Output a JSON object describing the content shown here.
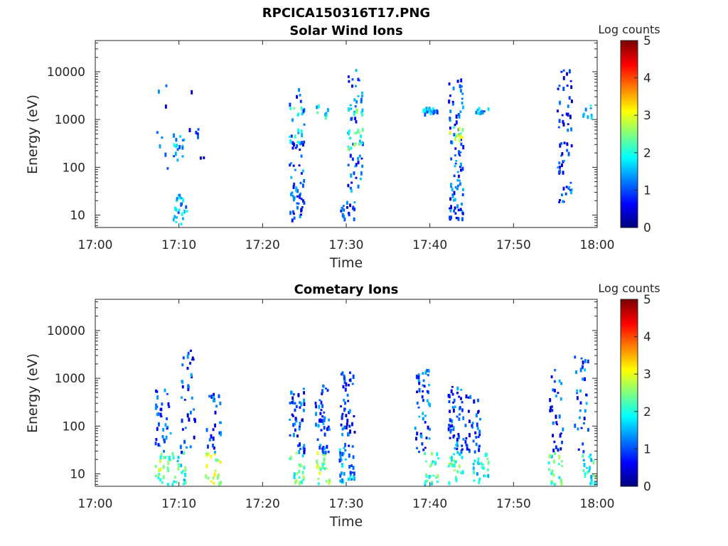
{
  "figure_title": "RPCICA150316T17.PNG",
  "chart_data": [
    {
      "type": "heatmap",
      "title": "Solar Wind Ions",
      "xlabel": "Time",
      "ylabel": "Energy (eV)",
      "x_ticks": [
        "17:00",
        "17:10",
        "17:20",
        "17:30",
        "17:40",
        "17:50",
        "18:00"
      ],
      "x_range": [
        "17:00",
        "18:00"
      ],
      "y_scale": "log",
      "y_ticks": [
        "10",
        "100",
        "1000",
        "10000"
      ],
      "y_range": [
        5.5,
        45000
      ],
      "colorbar": {
        "label": "Log counts",
        "range": [
          0,
          5
        ],
        "ticks": [
          "0",
          "1",
          "2",
          "3",
          "4",
          "5"
        ],
        "colormap": "jet"
      },
      "bursts": [
        {
          "t": "17:08",
          "e": [
            30,
            16000
          ],
          "z": 0.9,
          "n": 8
        },
        {
          "t": "17:10",
          "e": [
            6,
            30
          ],
          "z": 1.6,
          "n": 24
        },
        {
          "t": "17:10",
          "e": [
            150,
            600
          ],
          "z": 1.4,
          "n": 16
        },
        {
          "t": "17:12",
          "e": [
            150,
            6000
          ],
          "z": 0.6,
          "n": 8
        },
        {
          "t": "17:24",
          "e": [
            8,
            30
          ],
          "z": 1.0,
          "n": 24
        },
        {
          "t": "17:24",
          "e": [
            30,
            5000
          ],
          "z": 1.0,
          "n": 40
        },
        {
          "t": "17:24",
          "e": [
            350,
            700
          ],
          "z": 2.0,
          "n": 8
        },
        {
          "t": "17:24",
          "e": [
            1300,
            2000
          ],
          "z": 2.0,
          "n": 6
        },
        {
          "t": "17:27",
          "e": [
            1200,
            2200
          ],
          "z": 1.8,
          "n": 8
        },
        {
          "t": "17:30",
          "e": [
            8,
            20
          ],
          "z": 0.9,
          "n": 20
        },
        {
          "t": "17:31",
          "e": [
            30,
            14000
          ],
          "z": 1.1,
          "n": 50
        },
        {
          "t": "17:31",
          "e": [
            250,
            700
          ],
          "z": 2.2,
          "n": 16
        },
        {
          "t": "17:31",
          "e": [
            1300,
            2000
          ],
          "z": 2.1,
          "n": 8
        },
        {
          "t": "17:40",
          "e": [
            1400,
            1900
          ],
          "z": 1.4,
          "n": 24
        },
        {
          "t": "17:43",
          "e": [
            8,
            40
          ],
          "z": 1.0,
          "n": 30
        },
        {
          "t": "17:43",
          "e": [
            40,
            8000
          ],
          "z": 1.0,
          "n": 60
        },
        {
          "t": "17:43",
          "e": [
            400,
            800
          ],
          "z": 2.6,
          "n": 12
        },
        {
          "t": "17:46",
          "e": [
            1400,
            1900
          ],
          "z": 1.5,
          "n": 10
        },
        {
          "t": "17:56",
          "e": [
            15,
            200
          ],
          "z": 0.9,
          "n": 24
        },
        {
          "t": "17:56",
          "e": [
            200,
            13000
          ],
          "z": 0.7,
          "n": 36
        },
        {
          "t": "17:59",
          "e": [
            1200,
            2200
          ],
          "z": 1.5,
          "n": 10
        }
      ]
    },
    {
      "type": "heatmap",
      "title": "Cometary Ions",
      "xlabel": "Time",
      "ylabel": "Energy (eV)",
      "x_ticks": [
        "17:00",
        "17:10",
        "17:20",
        "17:30",
        "17:40",
        "17:50",
        "18:00"
      ],
      "x_range": [
        "17:00",
        "18:00"
      ],
      "y_scale": "log",
      "y_ticks": [
        "10",
        "100",
        "1000",
        "10000"
      ],
      "y_range": [
        5.5,
        45000
      ],
      "colorbar": {
        "label": "Log counts",
        "range": [
          0,
          5
        ],
        "ticks": [
          "0",
          "1",
          "2",
          "3",
          "4",
          "5"
        ],
        "colormap": "jet"
      },
      "bursts": [
        {
          "t": "17:08",
          "e": [
            6,
            30
          ],
          "z": 2.4,
          "n": 26
        },
        {
          "t": "17:08",
          "e": [
            30,
            900
          ],
          "z": 1.0,
          "n": 36
        },
        {
          "t": "17:10",
          "e": [
            6,
            30
          ],
          "z": 2.0,
          "n": 24
        },
        {
          "t": "17:11",
          "e": [
            30,
            4000
          ],
          "z": 0.9,
          "n": 36
        },
        {
          "t": "17:14",
          "e": [
            6,
            30
          ],
          "z": 2.9,
          "n": 24
        },
        {
          "t": "17:14",
          "e": [
            30,
            500
          ],
          "z": 1.0,
          "n": 28
        },
        {
          "t": "17:24",
          "e": [
            6,
            30
          ],
          "z": 2.2,
          "n": 24
        },
        {
          "t": "17:24",
          "e": [
            30,
            700
          ],
          "z": 0.9,
          "n": 46
        },
        {
          "t": "17:27",
          "e": [
            6,
            30
          ],
          "z": 2.6,
          "n": 24
        },
        {
          "t": "17:27",
          "e": [
            30,
            800
          ],
          "z": 1.0,
          "n": 44
        },
        {
          "t": "17:30",
          "e": [
            6,
            40
          ],
          "z": 1.4,
          "n": 36
        },
        {
          "t": "17:30",
          "e": [
            40,
            1600
          ],
          "z": 0.9,
          "n": 44
        },
        {
          "t": "17:40",
          "e": [
            6,
            30
          ],
          "z": 2.1,
          "n": 24
        },
        {
          "t": "17:39",
          "e": [
            30,
            1600
          ],
          "z": 1.0,
          "n": 48
        },
        {
          "t": "17:43",
          "e": [
            6,
            30
          ],
          "z": 2.2,
          "n": 24
        },
        {
          "t": "17:43",
          "e": [
            30,
            700
          ],
          "z": 1.0,
          "n": 54
        },
        {
          "t": "17:46",
          "e": [
            6,
            30
          ],
          "z": 1.9,
          "n": 24
        },
        {
          "t": "17:45",
          "e": [
            30,
            500
          ],
          "z": 0.9,
          "n": 36
        },
        {
          "t": "17:55",
          "e": [
            6,
            30
          ],
          "z": 2.1,
          "n": 24
        },
        {
          "t": "17:55",
          "e": [
            30,
            2000
          ],
          "z": 0.9,
          "n": 32
        },
        {
          "t": "17:59",
          "e": [
            6,
            30
          ],
          "z": 2.0,
          "n": 24
        },
        {
          "t": "17:58",
          "e": [
            30,
            3000
          ],
          "z": 1.0,
          "n": 32
        }
      ]
    }
  ]
}
